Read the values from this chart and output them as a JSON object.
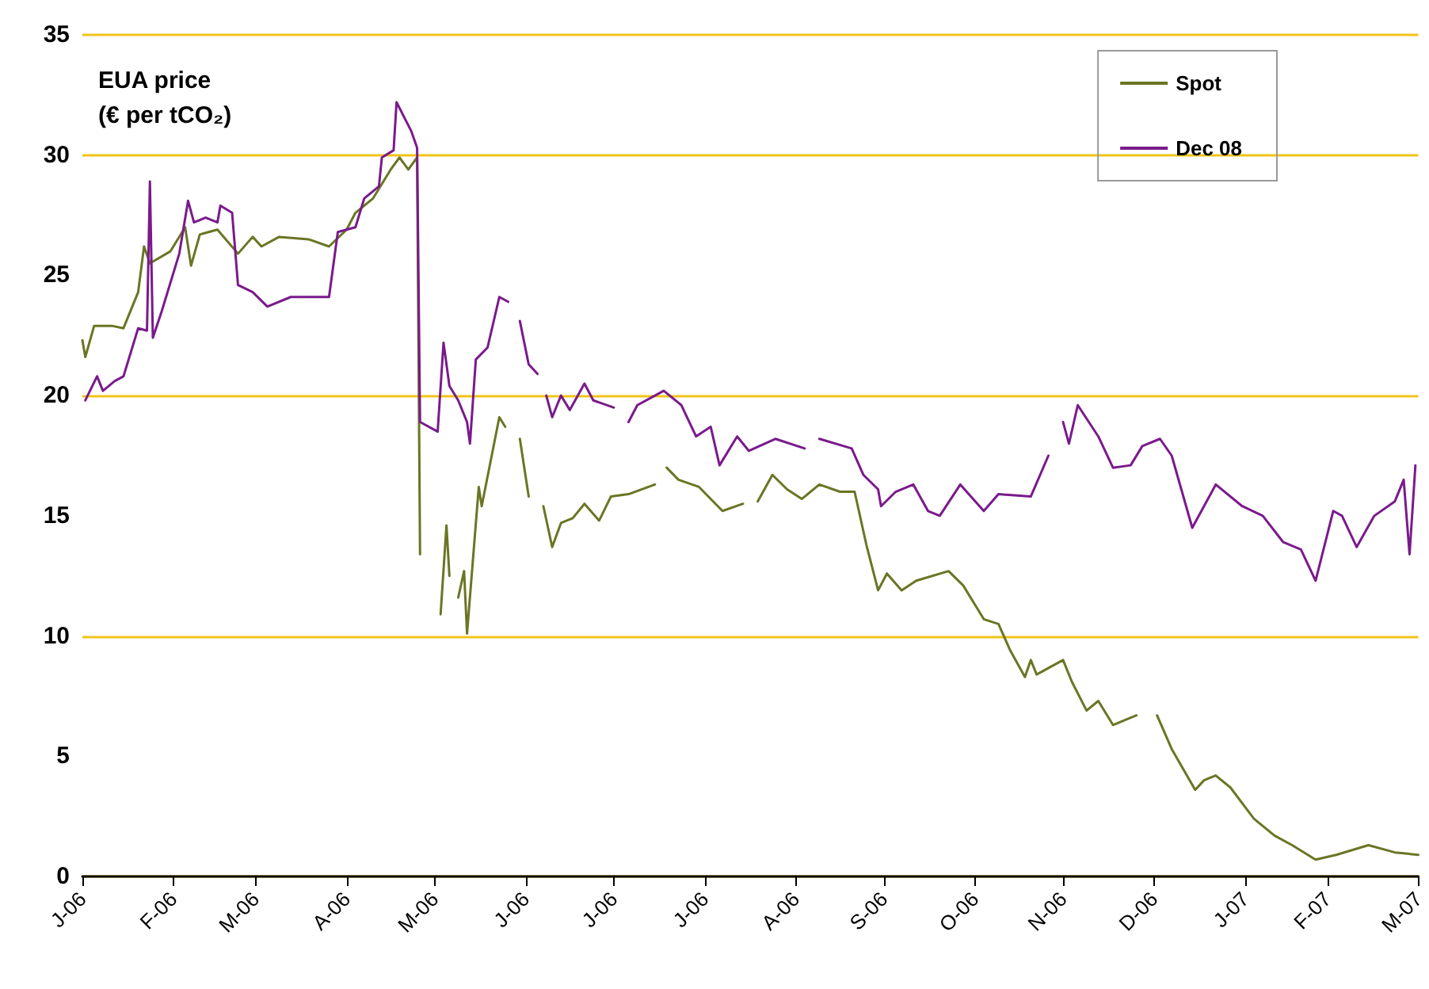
{
  "chart_data": {
    "type": "line",
    "ylabel": "EUA price (€ per tCO₂)",
    "xlim": [
      "2006-01-01",
      "2007-04-01"
    ],
    "xticks": [
      {
        "value": "2006-01-01",
        "label": "J-06"
      },
      {
        "value": "2006-02-01",
        "label": "F-06"
      },
      {
        "value": "2006-03-01",
        "label": "M-06"
      },
      {
        "value": "2006-04-01",
        "label": "A-06"
      },
      {
        "value": "2006-05-01",
        "label": "M-06"
      },
      {
        "value": "2006-06-01",
        "label": "J-06"
      },
      {
        "value": "2006-07-01",
        "label": "J-06"
      },
      {
        "value": "2006-08-01",
        "label": "J-06"
      },
      {
        "value": "2006-09-01",
        "label": "A-06"
      },
      {
        "value": "2006-10-01",
        "label": "S-06"
      },
      {
        "value": "2006-11-01",
        "label": "O-06"
      },
      {
        "value": "2006-12-01",
        "label": "N-06"
      },
      {
        "value": "2007-01-01",
        "label": "D-06"
      },
      {
        "value": "2007-02-01",
        "label": "J-07"
      },
      {
        "value": "2007-03-01",
        "label": "F-07"
      },
      {
        "value": "2007-04-01",
        "label": "M-07"
      }
    ],
    "ylim": [
      0,
      35
    ],
    "yticks": [
      0,
      5,
      10,
      15,
      20,
      25,
      30,
      35
    ],
    "grid": "y",
    "legend": "top right",
    "marker": "none",
    "line_style": "solid",
    "series": [
      {
        "name": "Spot",
        "color": "#6b7524",
        "x": [
          "2006-01-01",
          "2006-01-02",
          "2006-01-05",
          "2006-01-11",
          "2006-01-15",
          "2006-01-20",
          "2006-01-22",
          "2006-01-24",
          "2006-01-31",
          "2006-02-05",
          "2006-02-07",
          "2006-02-10",
          "2006-02-16",
          "2006-02-23",
          "2006-02-28",
          "2006-03-03",
          "2006-03-09",
          "2006-03-19",
          "2006-03-26",
          "2006-04-01",
          "2006-04-04",
          "2006-04-10",
          "2006-04-16",
          "2006-04-19",
          "2006-04-22",
          "2006-04-25",
          "2006-04-26",
          "2006-04-28",
          "2006-05-03",
          "2006-05-05",
          "2006-05-06",
          "2006-05-07",
          "2006-05-09",
          "2006-05-11",
          "2006-05-12",
          "2006-05-16",
          "2006-05-17",
          "2006-05-23",
          "2006-05-25",
          "2006-05-26",
          "2006-05-30",
          "2006-06-02",
          "2006-06-04",
          "2006-06-07",
          "2006-06-10",
          "2006-06-13",
          "2006-06-17",
          "2006-06-21",
          "2006-06-26",
          "2006-06-30",
          "2006-07-06",
          "2006-07-15",
          "2006-07-16",
          "2006-07-19",
          "2006-07-23",
          "2006-07-30",
          "2006-08-07",
          "2006-08-14",
          "2006-08-16",
          "2006-08-19",
          "2006-08-24",
          "2006-08-29",
          "2006-09-03",
          "2006-09-09",
          "2006-09-16",
          "2006-09-21",
          "2006-09-25",
          "2006-09-29",
          "2006-10-02",
          "2006-10-07",
          "2006-10-12",
          "2006-10-23",
          "2006-10-28",
          "2006-11-04",
          "2006-11-09",
          "2006-11-13",
          "2006-11-18",
          "2006-11-20",
          "2006-11-22",
          "2006-12-01",
          "2006-12-04",
          "2006-12-09",
          "2006-12-13",
          "2006-12-18",
          "2006-12-26",
          "2006-12-28",
          "2007-01-02",
          "2007-01-07",
          "2007-01-15",
          "2007-01-18",
          "2007-01-22",
          "2007-01-27",
          "2007-02-04",
          "2007-02-11",
          "2007-02-17",
          "2007-02-25",
          "2007-03-04",
          "2007-03-15",
          "2007-03-24",
          "2007-04-01"
        ],
        "values": [
          22.3,
          21.6,
          22.9,
          22.9,
          22.8,
          24.3,
          26.2,
          25.5,
          26.0,
          27.0,
          25.4,
          26.7,
          26.9,
          25.9,
          26.6,
          26.2,
          26.6,
          26.5,
          26.2,
          26.9,
          27.6,
          28.2,
          29.4,
          29.9,
          29.4,
          29.9,
          13.4,
          null,
          10.9,
          14.6,
          12.5,
          null,
          11.6,
          12.7,
          10.1,
          16.2,
          15.4,
          19.1,
          18.7,
          null,
          18.2,
          15.8,
          null,
          15.4,
          13.7,
          14.7,
          14.9,
          15.5,
          14.8,
          15.8,
          15.9,
          16.3,
          null,
          17.0,
          16.5,
          16.2,
          15.2,
          15.5,
          null,
          15.6,
          16.7,
          16.1,
          15.7,
          16.3,
          16.0,
          16.0,
          13.8,
          11.9,
          12.6,
          11.9,
          12.3,
          12.7,
          12.1,
          10.7,
          10.5,
          9.4,
          8.3,
          9.0,
          8.4,
          9.0,
          8.1,
          6.9,
          7.3,
          6.3,
          6.7,
          null,
          6.7,
          5.3,
          3.6,
          4.0,
          4.2,
          3.7,
          2.4,
          1.7,
          1.3,
          0.7,
          0.9,
          1.3,
          1.0,
          0.9
        ]
      },
      {
        "name": "Dec 08",
        "color": "#7a1a8c",
        "x": [
          "2006-01-02",
          "2006-01-06",
          "2006-01-08",
          "2006-01-12",
          "2006-01-15",
          "2006-01-18",
          "2006-01-20",
          "2006-01-23",
          "2006-01-24",
          "2006-01-25",
          "2006-01-28",
          "2006-02-03",
          "2006-02-06",
          "2006-02-08",
          "2006-02-12",
          "2006-02-16",
          "2006-02-17",
          "2006-02-21",
          "2006-02-23",
          "2006-02-28",
          "2006-03-05",
          "2006-03-13",
          "2006-03-26",
          "2006-03-29",
          "2006-04-04",
          "2006-04-07",
          "2006-04-12",
          "2006-04-13",
          "2006-04-17",
          "2006-04-18",
          "2006-04-23",
          "2006-04-25",
          "2006-04-26",
          "2006-05-02",
          "2006-05-04",
          "2006-05-06",
          "2006-05-09",
          "2006-05-12",
          "2006-05-13",
          "2006-05-15",
          "2006-05-19",
          "2006-05-23",
          "2006-05-26",
          "2006-05-28",
          "2006-05-30",
          "2006-06-02",
          "2006-06-05",
          "2006-06-06",
          "2006-06-08",
          "2006-06-10",
          "2006-06-13",
          "2006-06-16",
          "2006-06-21",
          "2006-06-24",
          "2006-07-01",
          "2006-07-04",
          "2006-07-06",
          "2006-07-09",
          "2006-07-18",
          "2006-07-24",
          "2006-07-29",
          "2006-08-03",
          "2006-08-06",
          "2006-08-12",
          "2006-08-16",
          "2006-08-25",
          "2006-09-04",
          "2006-09-07",
          "2006-09-09",
          "2006-09-20",
          "2006-09-24",
          "2006-09-29",
          "2006-09-30",
          "2006-10-05",
          "2006-10-11",
          "2006-10-16",
          "2006-10-20",
          "2006-10-27",
          "2006-11-04",
          "2006-11-09",
          "2006-11-20",
          "2006-11-26",
          "2006-11-28",
          "2006-12-01",
          "2006-12-03",
          "2006-12-06",
          "2006-12-13",
          "2006-12-18",
          "2006-12-24",
          "2006-12-28",
          "2007-01-03",
          "2007-01-07",
          "2007-01-14",
          "2007-01-22",
          "2007-01-31",
          "2007-02-07",
          "2007-02-14",
          "2007-02-20",
          "2007-02-25",
          "2007-03-03",
          "2007-03-06",
          "2007-03-11",
          "2007-03-17",
          "2007-03-24",
          "2007-03-27",
          "2007-03-29",
          "2007-03-31"
        ],
        "values": [
          19.8,
          20.8,
          20.2,
          20.6,
          20.8,
          22.0,
          22.8,
          22.7,
          28.9,
          22.4,
          23.5,
          25.9,
          28.1,
          27.2,
          27.4,
          27.2,
          27.9,
          27.6,
          24.6,
          24.3,
          23.7,
          24.1,
          24.1,
          26.8,
          27.0,
          28.2,
          28.7,
          29.9,
          30.2,
          32.2,
          31.0,
          30.3,
          18.9,
          18.5,
          22.2,
          20.4,
          19.8,
          18.9,
          18.0,
          21.5,
          22.0,
          24.1,
          23.9,
          null,
          23.1,
          21.3,
          20.9,
          null,
          20.0,
          19.1,
          20.0,
          19.4,
          20.5,
          19.8,
          19.5,
          null,
          18.9,
          19.6,
          20.2,
          19.6,
          18.3,
          18.7,
          17.1,
          18.3,
          17.7,
          18.2,
          17.8,
          null,
          18.2,
          17.8,
          16.7,
          16.1,
          15.4,
          16.0,
          16.3,
          15.2,
          15.0,
          16.3,
          15.2,
          15.9,
          15.8,
          17.5,
          null,
          18.9,
          18.0,
          19.6,
          18.3,
          17.0,
          17.1,
          17.9,
          18.2,
          17.5,
          14.5,
          16.3,
          15.4,
          15.0,
          13.9,
          13.6,
          12.3,
          15.2,
          15.0,
          13.7,
          15.0,
          15.6,
          16.5,
          13.4,
          17.1
        ]
      }
    ]
  }
}
